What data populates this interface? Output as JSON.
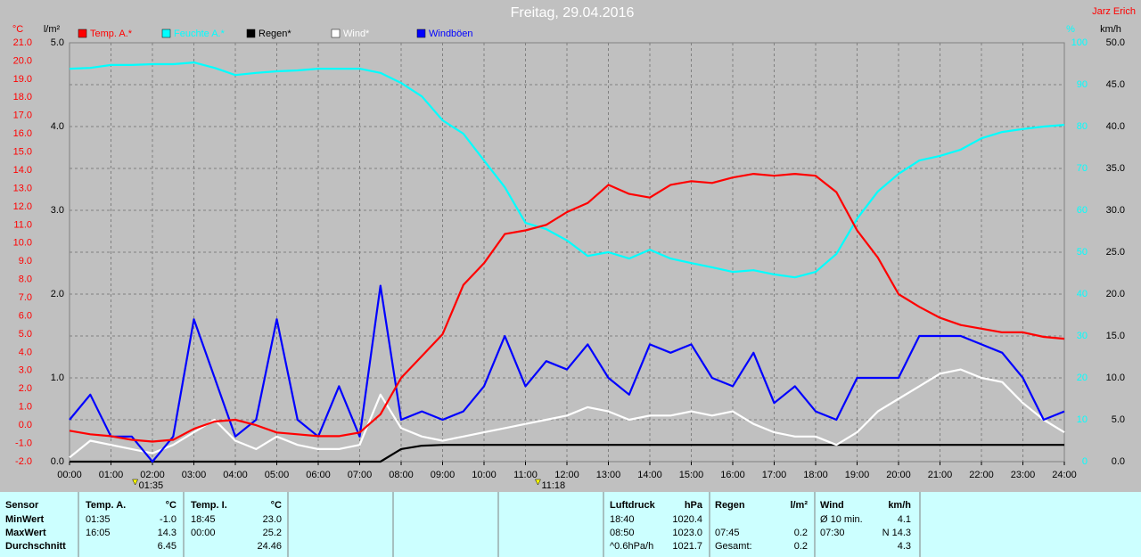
{
  "chart_data": {
    "type": "line",
    "title": "Freitag, 29.04.2016",
    "author": "Jarz Erich",
    "y_label": "°C",
    "y2_label": "l/m²",
    "y3_label": "%",
    "y4_label": "km/h",
    "x": [
      0,
      0.5,
      1,
      1.5,
      2,
      2.5,
      3,
      3.5,
      4,
      4.5,
      5,
      5.5,
      6,
      6.5,
      7,
      7.5,
      8,
      8.5,
      9,
      9.5,
      10,
      10.5,
      11,
      11.5,
      12,
      12.5,
      13,
      13.5,
      14,
      14.5,
      15,
      15.5,
      16,
      16.5,
      17,
      17.5,
      18,
      18.5,
      19,
      19.5,
      20,
      20.5,
      21,
      21.5,
      22,
      22.5,
      23,
      23.5,
      24
    ],
    "xlim": [
      0,
      24
    ],
    "xticks": [
      {
        "value": 0,
        "label": "00:00"
      },
      {
        "value": 1,
        "label": "01:00"
      },
      {
        "value": 2,
        "label": "02:00"
      },
      {
        "value": 3,
        "label": "03:00"
      },
      {
        "value": 4,
        "label": "04:00"
      },
      {
        "value": 5,
        "label": "05:00"
      },
      {
        "value": 6,
        "label": "06:00"
      },
      {
        "value": 7,
        "label": "07:00"
      },
      {
        "value": 8,
        "label": "08:00"
      },
      {
        "value": 9,
        "label": "09:00"
      },
      {
        "value": 10,
        "label": "10:00"
      },
      {
        "value": 11,
        "label": "11:00"
      },
      {
        "value": 12,
        "label": "12:00"
      },
      {
        "value": 13,
        "label": "13:00"
      },
      {
        "value": 14,
        "label": "14:00"
      },
      {
        "value": 15,
        "label": "15:00"
      },
      {
        "value": 16,
        "label": "16:00"
      },
      {
        "value": 17,
        "label": "17:00"
      },
      {
        "value": 18,
        "label": "18:00"
      },
      {
        "value": 19,
        "label": "19:00"
      },
      {
        "value": 20,
        "label": "20:00"
      },
      {
        "value": 21,
        "label": "21:00"
      },
      {
        "value": 22,
        "label": "22:00"
      },
      {
        "value": 23,
        "label": "23:00"
      },
      {
        "value": 24,
        "label": "24:00"
      }
    ],
    "ylim": [
      -2,
      21
    ],
    "yticks": [
      {
        "value": -2,
        "label": "-2.0"
      },
      {
        "value": -1,
        "label": "-1.0"
      },
      {
        "value": 0,
        "label": "0.0"
      },
      {
        "value": 1,
        "label": "1.0"
      },
      {
        "value": 2,
        "label": "2.0"
      },
      {
        "value": 3,
        "label": "3.0"
      },
      {
        "value": 4,
        "label": "4.0"
      },
      {
        "value": 5,
        "label": "5.0"
      },
      {
        "value": 6,
        "label": "6.0"
      },
      {
        "value": 7,
        "label": "7.0"
      },
      {
        "value": 8,
        "label": "8.0"
      },
      {
        "value": 9,
        "label": "9.0"
      },
      {
        "value": 10,
        "label": "10.0"
      },
      {
        "value": 11,
        "label": "11.0"
      },
      {
        "value": 12,
        "label": "12.0"
      },
      {
        "value": 13,
        "label": "13.0"
      },
      {
        "value": 14,
        "label": "14.0"
      },
      {
        "value": 15,
        "label": "15.0"
      },
      {
        "value": 16,
        "label": "16.0"
      },
      {
        "value": 17,
        "label": "17.0"
      },
      {
        "value": 18,
        "label": "18.0"
      },
      {
        "value": 19,
        "label": "19.0"
      },
      {
        "value": 20,
        "label": "20.0"
      },
      {
        "value": 21,
        "label": "21.0"
      }
    ],
    "y2lim": [
      0,
      5
    ],
    "y2ticks": [
      {
        "value": 0,
        "label": "0.0"
      },
      {
        "value": 1,
        "label": "1.0"
      },
      {
        "value": 2,
        "label": "2.0"
      },
      {
        "value": 3,
        "label": "3.0"
      },
      {
        "value": 4,
        "label": "4.0"
      },
      {
        "value": 5,
        "label": "5.0"
      }
    ],
    "y3lim": [
      0,
      100
    ],
    "y3ticks": [
      0,
      10,
      20,
      30,
      40,
      50,
      60,
      70,
      80,
      90,
      100
    ],
    "y4lim": [
      0,
      50
    ],
    "y4ticks": [
      {
        "value": 0,
        "label": "0.0"
      },
      {
        "value": 5,
        "label": "5.0"
      },
      {
        "value": 10,
        "label": "10.0"
      },
      {
        "value": 15,
        "label": "15.0"
      },
      {
        "value": 20,
        "label": "20.0"
      },
      {
        "value": 25,
        "label": "25.0"
      },
      {
        "value": 30,
        "label": "30.0"
      },
      {
        "value": 35,
        "label": "35.0"
      },
      {
        "value": 40,
        "label": "40.0"
      },
      {
        "value": 45,
        "label": "45.0"
      },
      {
        "value": 50,
        "label": "50.0"
      }
    ],
    "grid": true,
    "series": [
      {
        "name": "Temp. A.*",
        "color": "#ff0000",
        "axis": "y",
        "values": [
          -0.3,
          -0.5,
          -0.6,
          -0.8,
          -0.9,
          -0.8,
          -0.2,
          0.2,
          0.3,
          0.0,
          -0.4,
          -0.5,
          -0.6,
          -0.6,
          -0.4,
          0.6,
          2.6,
          3.8,
          5.0,
          7.7,
          8.9,
          10.5,
          10.7,
          11.0,
          11.7,
          12.2,
          13.2,
          12.7,
          12.5,
          13.2,
          13.4,
          13.3,
          13.6,
          13.8,
          13.7,
          13.8,
          13.7,
          12.8,
          10.7,
          9.2,
          7.2,
          6.5,
          5.9,
          5.5,
          5.3,
          5.1,
          5.1,
          4.85,
          4.75
        ]
      },
      {
        "name": "Feuchte A.*",
        "color": "#00ffff",
        "axis": "y3",
        "values": [
          93.8,
          94,
          94.7,
          94.7,
          94.9,
          94.9,
          95.3,
          94,
          92.3,
          92.8,
          93.2,
          93.4,
          93.8,
          93.8,
          93.8,
          92.8,
          90.4,
          87.2,
          81.5,
          78.3,
          71.9,
          65.5,
          57,
          55.5,
          52.8,
          49.1,
          50,
          48.5,
          50.6,
          48.5,
          47.4,
          46.4,
          45.3,
          45.7,
          44.7,
          44,
          45.3,
          49.6,
          58,
          64.5,
          68.7,
          71.9,
          73,
          74.5,
          77.2,
          78.7,
          79.4,
          80,
          80.4
        ]
      },
      {
        "name": "Regen*",
        "color": "#000000",
        "axis": "y2",
        "values": [
          0,
          0,
          0,
          0,
          0,
          0,
          0,
          0,
          0,
          0,
          0,
          0,
          0,
          0,
          0,
          0,
          0.15,
          0.19,
          0.2,
          0.2,
          0.2,
          0.2,
          0.2,
          0.2,
          0.2,
          0.2,
          0.2,
          0.2,
          0.2,
          0.2,
          0.2,
          0.2,
          0.2,
          0.2,
          0.2,
          0.2,
          0.2,
          0.2,
          0.2,
          0.2,
          0.2,
          0.2,
          0.2,
          0.2,
          0.2,
          0.2,
          0.2,
          0.2,
          0.2
        ]
      },
      {
        "name": "Wind*",
        "color": "#ffffff",
        "axis": "y4",
        "values": [
          0.5,
          2.5,
          2.0,
          1.5,
          1.0,
          2.0,
          3.5,
          5.0,
          2.5,
          1.5,
          3.0,
          2.0,
          1.5,
          1.5,
          2.0,
          8.0,
          4.0,
          3.0,
          2.5,
          3.0,
          3.5,
          4.0,
          4.5,
          5.0,
          5.5,
          6.5,
          6.0,
          5.0,
          5.5,
          5.5,
          6.0,
          5.5,
          6.0,
          4.5,
          3.5,
          3.0,
          3.0,
          2.0,
          3.5,
          6.0,
          7.5,
          9.0,
          10.5,
          11.0,
          10.0,
          9.5,
          7.0,
          5.0,
          3.5
        ]
      },
      {
        "name": "Windböen",
        "color": "#0000ff",
        "axis": "y4",
        "values": [
          5,
          8,
          3,
          3,
          0,
          3,
          17,
          10,
          3,
          5,
          17,
          5,
          3,
          9,
          3,
          21,
          5,
          6,
          5,
          6,
          9,
          15,
          9,
          12,
          11,
          14,
          10,
          8,
          14,
          13,
          14,
          10,
          9,
          13,
          7,
          9,
          6,
          5,
          10,
          10,
          10,
          15,
          15,
          15,
          14,
          13,
          10,
          5,
          6
        ]
      }
    ],
    "annotations": [
      {
        "text": "01:35",
        "x": 1.583
      },
      {
        "text": "11:18",
        "x": 11.3
      }
    ]
  },
  "table": {
    "sections": [
      {
        "header": [
          "Sensor",
          null
        ],
        "rows": [
          [
            "MinWert",
            null
          ],
          [
            "MaxWert",
            null
          ],
          [
            "Durchschnitt",
            null
          ]
        ]
      },
      {
        "header": [
          "Temp. A.",
          "°C"
        ],
        "rows": [
          [
            "01:35",
            "-1.0"
          ],
          [
            "16:05",
            "14.3"
          ],
          [
            null,
            "6.45"
          ]
        ]
      },
      {
        "header": [
          "Temp. I.",
          "°C"
        ],
        "rows": [
          [
            "18:45",
            "23.0"
          ],
          [
            "00:00",
            "25.2"
          ],
          [
            null,
            "24.46"
          ]
        ]
      },
      {
        "header": [
          "Luftdruck",
          "hPa"
        ],
        "rows": [
          [
            "18:40",
            "1020.4"
          ],
          [
            "08:50",
            "1023.0"
          ],
          [
            "^0.6hPa/h",
            "1021.7"
          ]
        ]
      },
      {
        "header": [
          "Regen",
          "l/m²"
        ],
        "rows": [
          [
            null,
            null
          ],
          [
            "07:45",
            "0.2"
          ],
          [
            "Gesamt:",
            "0.2"
          ]
        ]
      },
      {
        "header": [
          "Wind",
          "km/h"
        ],
        "rows": [
          [
            "Ø 10 min.",
            "4.1"
          ],
          [
            "07:30",
            "N 14.3"
          ],
          [
            null,
            "4.3"
          ]
        ]
      }
    ]
  }
}
